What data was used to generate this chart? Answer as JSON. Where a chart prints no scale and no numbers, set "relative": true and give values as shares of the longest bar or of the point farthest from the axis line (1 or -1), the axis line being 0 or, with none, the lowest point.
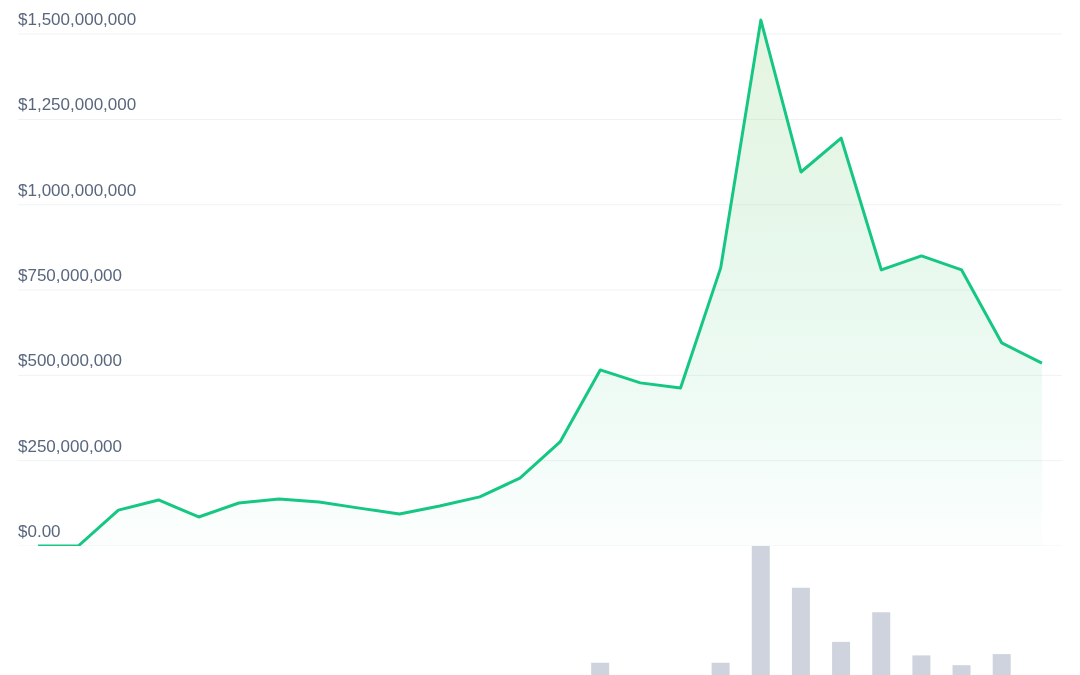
{
  "chart_data": [
    {
      "type": "area",
      "categories": [
        null,
        null,
        null,
        null,
        null,
        null,
        null,
        null,
        null,
        null,
        null,
        null,
        null,
        null,
        null,
        null,
        null,
        null,
        null,
        null,
        null,
        null,
        null,
        null,
        null,
        null
      ],
      "series": [
        {
          "color": "#16c784",
          "values": [
            0,
            0,
            105000000,
            135000000,
            85000000,
            126000000,
            138000000,
            129000000,
            111000000,
            94000000,
            117000000,
            144000000,
            199000000,
            305000000,
            516000000,
            478000000,
            463000000,
            815000000,
            1541000000,
            1096000000,
            1195000000,
            809000000,
            850000000,
            809000000,
            595000000,
            536000000
          ]
        }
      ],
      "ylim": [
        0,
        1600000000
      ],
      "yticks": [
        {
          "value": 0,
          "label": "$0.00"
        },
        {
          "value": 250000000,
          "label": "$250,000,000"
        },
        {
          "value": 500000000,
          "label": "$500,000,000"
        },
        {
          "value": 750000000,
          "label": "$750,000,000"
        },
        {
          "value": 1000000000,
          "label": "$1,000,000,000"
        },
        {
          "value": 1250000000,
          "label": "$1,250,000,000"
        },
        {
          "value": 1500000000,
          "label": "$1,500,000,000"
        }
      ],
      "grid": "y"
    },
    {
      "type": "bar",
      "relative": true,
      "color": "#cfd3dd",
      "categories": [
        null,
        null,
        null,
        null,
        null,
        null,
        null,
        null,
        null,
        null,
        null,
        null,
        null,
        null,
        null,
        null,
        null,
        null,
        null,
        null,
        null,
        null,
        null,
        null,
        null,
        null
      ],
      "values": [
        null,
        null,
        null,
        null,
        null,
        null,
        null,
        null,
        null,
        null,
        null,
        null,
        null,
        null,
        0.095,
        null,
        null,
        0.095,
        1,
        0.676,
        0.257,
        0.486,
        0.152,
        0.076,
        0.162,
        null
      ]
    }
  ]
}
